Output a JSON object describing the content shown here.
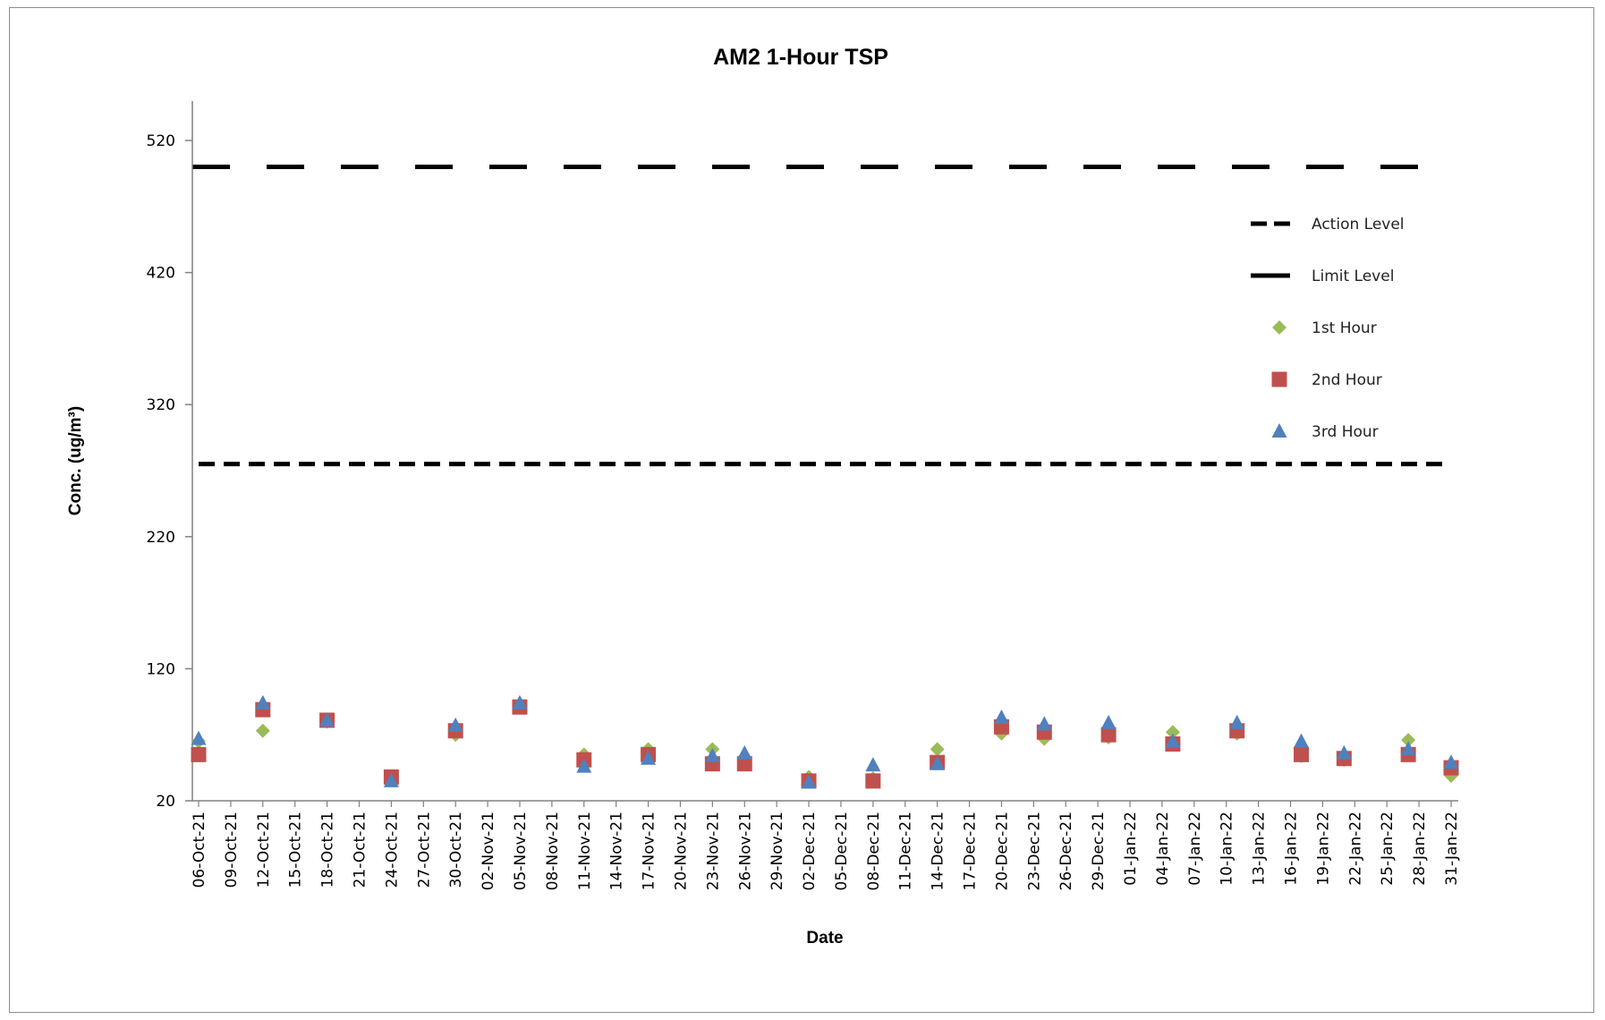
{
  "chart_data": {
    "type": "scatter",
    "title": "AM2 1-Hour TSP",
    "xlabel": "Date",
    "ylabel": "Conc. (ug/m³)",
    "ylim": [
      20,
      540
    ],
    "yticks": [
      20,
      120,
      220,
      320,
      420,
      520
    ],
    "x_tick_labels": [
      "06-Oct-21",
      "09-Oct-21",
      "12-Oct-21",
      "15-Oct-21",
      "18-Oct-21",
      "21-Oct-21",
      "24-Oct-21",
      "27-Oct-21",
      "30-Oct-21",
      "02-Nov-21",
      "05-Nov-21",
      "08-Nov-21",
      "11-Nov-21",
      "14-Nov-21",
      "17-Nov-21",
      "20-Nov-21",
      "23-Nov-21",
      "26-Nov-21",
      "29-Nov-21",
      "02-Dec-21",
      "05-Dec-21",
      "08-Dec-21",
      "11-Dec-21",
      "14-Dec-21",
      "17-Dec-21",
      "20-Dec-21",
      "23-Dec-21",
      "26-Dec-21",
      "29-Dec-21",
      "01-Jan-22",
      "04-Jan-22",
      "07-Jan-22",
      "10-Jan-22",
      "13-Jan-22",
      "16-Jan-22",
      "19-Jan-22",
      "22-Jan-22",
      "25-Jan-22",
      "28-Jan-22",
      "31-Jan-22"
    ],
    "x_range": [
      "2021-10-06",
      "2022-01-31"
    ],
    "legend_position": "right",
    "grid": false,
    "reference_lines": [
      {
        "name": "Action Level",
        "value": 275,
        "style": "dashed",
        "color": "#000000"
      },
      {
        "name": "Limit Level",
        "value": 500,
        "style": "long-dashed",
        "color": "#000000"
      }
    ],
    "dates": [
      "2021-10-06",
      "2021-10-12",
      "2021-10-18",
      "2021-10-24",
      "2021-10-30",
      "2021-11-05",
      "2021-11-11",
      "2021-11-17",
      "2021-11-23",
      "2021-11-26",
      "2021-12-02",
      "2021-12-08",
      "2021-12-14",
      "2021-12-20",
      "2021-12-24",
      "2021-12-30",
      "2022-01-05",
      "2022-01-11",
      "2022-01-17",
      "2022-01-21",
      "2022-01-27",
      "2022-01-31"
    ],
    "series": [
      {
        "name": "1st Hour",
        "marker": "diamond",
        "color": "#9BBB59",
        "values": [
          65,
          73,
          80,
          38,
          70,
          91,
          55,
          59,
          59,
          53,
          38,
          37,
          59,
          71,
          67,
          68,
          72,
          71,
          54,
          51,
          66,
          39
        ]
      },
      {
        "name": "2nd Hour",
        "marker": "square",
        "color": "#C0504D",
        "values": [
          55,
          89,
          81,
          38,
          73,
          91,
          51,
          55,
          48,
          48,
          35,
          35,
          49,
          76,
          72,
          70,
          63,
          73,
          55,
          52,
          55,
          45
        ]
      },
      {
        "name": "3rd Hour",
        "marker": "triangle",
        "color": "#4F81BD",
        "values": [
          67,
          94,
          81,
          35,
          77,
          94,
          46,
          52,
          54,
          56,
          34,
          47,
          48,
          83,
          78,
          79,
          65,
          79,
          65,
          56,
          59,
          49
        ]
      }
    ]
  }
}
